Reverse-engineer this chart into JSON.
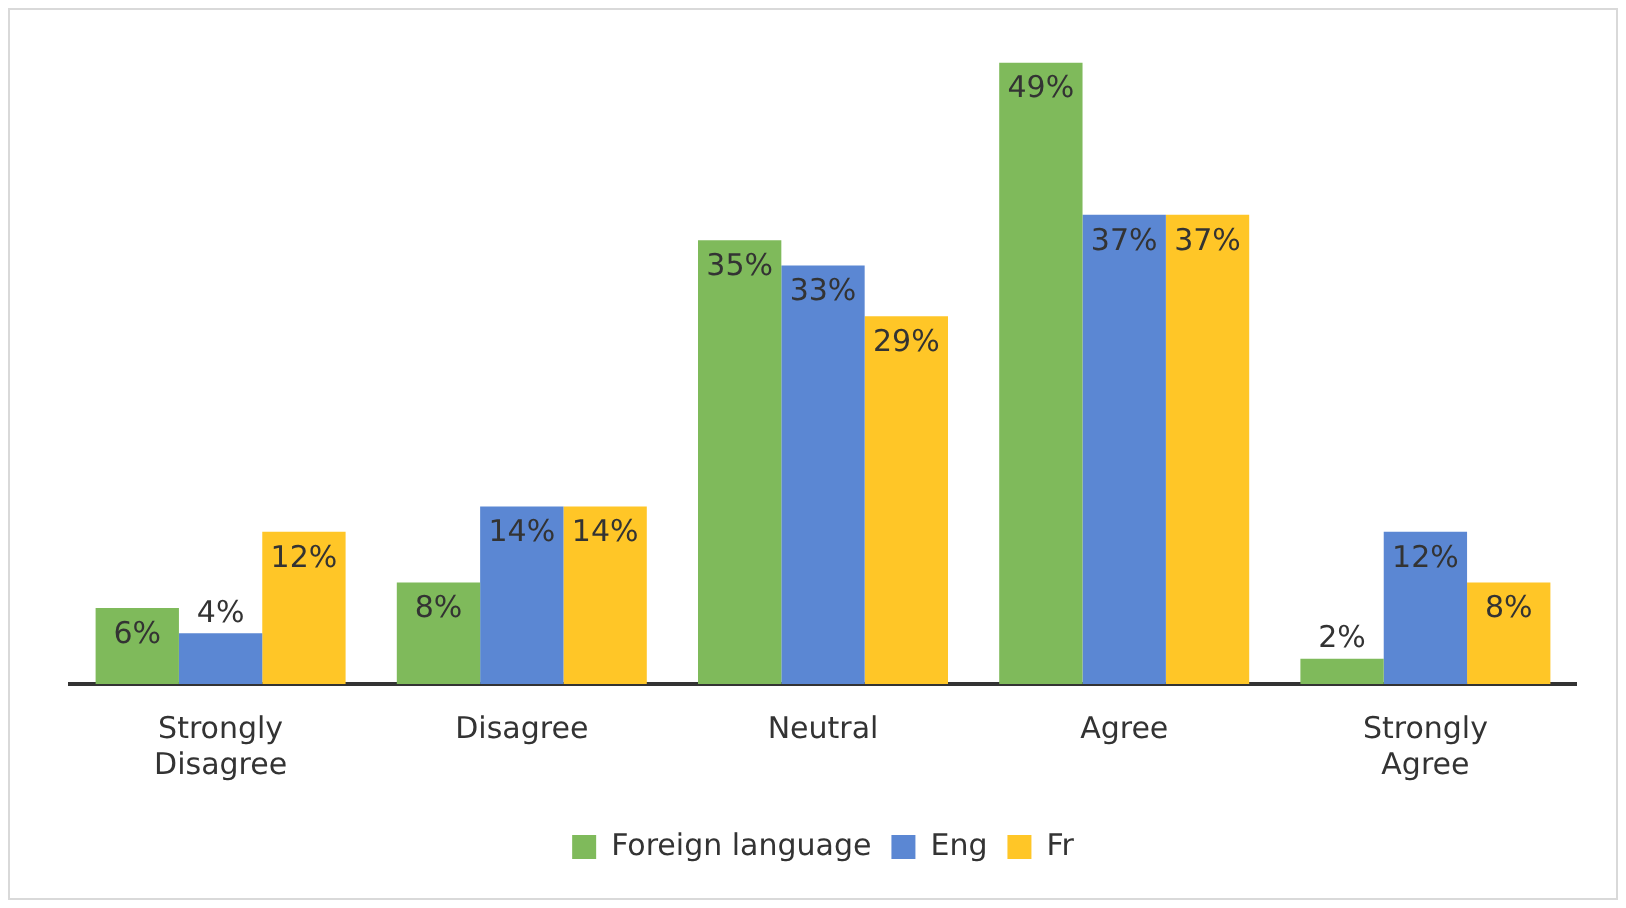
{
  "chart_data": {
    "type": "bar",
    "categories": [
      "Strongly Disagree",
      "Disagree",
      "Neutral",
      "Agree",
      "Strongly Agree"
    ],
    "series": [
      {
        "name": "Foreign language",
        "color": "#7fba5b",
        "values": [
          6,
          8,
          35,
          49,
          2
        ],
        "value_labels": [
          "6%",
          "8%",
          "35%",
          "49%",
          "2%"
        ]
      },
      {
        "name": "Eng",
        "color": "#5b87d3",
        "values": [
          4,
          14,
          33,
          37,
          12
        ],
        "value_labels": [
          "4%",
          "14%",
          "33%",
          "37%",
          "12%"
        ]
      },
      {
        "name": "Fr",
        "color": "#ffc627",
        "values": [
          12,
          14,
          29,
          37,
          8
        ],
        "value_labels": [
          "12%",
          "14%",
          "29%",
          "37%",
          "8%"
        ]
      }
    ],
    "legend": "bottom",
    "grid": false,
    "tick_labels": "x"
  }
}
